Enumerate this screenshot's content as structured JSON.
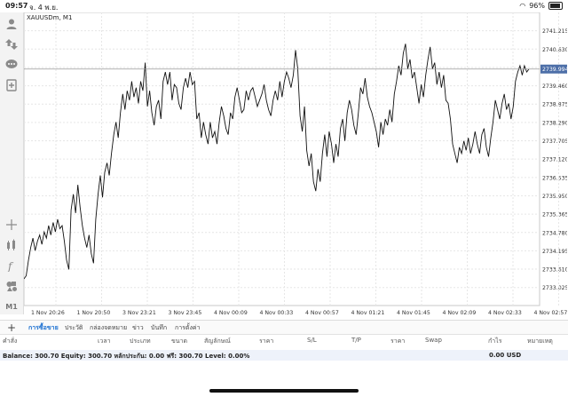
{
  "status_bar": {
    "time": "09:57",
    "date": "จ. 4 พ.ย.",
    "battery": "96%"
  },
  "chart": {
    "symbol": "XAUUSDm, M1",
    "current_price": "2739.994",
    "current_price_value": 2739.994
  },
  "chart_data": {
    "type": "line",
    "title": "XAUUSDm, M1",
    "ylim": [
      2732.45,
      2741.8
    ],
    "ytick_values": [
      2741.215,
      2740.63,
      2740.045,
      2739.46,
      2738.875,
      2738.29,
      2737.705,
      2737.12,
      2736.535,
      2735.95,
      2735.365,
      2734.78,
      2734.195,
      2733.61,
      2733.025
    ],
    "ytick_labels": [
      "2741.215",
      "2740.630",
      "2740.045",
      "2739.460",
      "2738.875",
      "2738.290",
      "2737.705",
      "2737.120",
      "2736.535",
      "2735.950",
      "2735.365",
      "2734.780",
      "2734.195",
      "2733.610",
      "2733.025"
    ],
    "xtick_labels": [
      "1 Nov 20:26",
      "1 Nov 20:50",
      "3 Nov 23:21",
      "3 Nov 23:45",
      "4 Nov 00:09",
      "4 Nov 00:33",
      "4 Nov 00:57",
      "4 Nov 01:21",
      "4 Nov 01:45",
      "4 Nov 02:09",
      "4 Nov 02:33",
      "4 Nov 02:57"
    ],
    "values": [
      2733.3,
      2733.4,
      2733.9,
      2734.3,
      2734.6,
      2734.2,
      2734.5,
      2734.7,
      2734.4,
      2734.8,
      2734.6,
      2735.0,
      2734.7,
      2735.1,
      2734.8,
      2735.2,
      2734.9,
      2735.0,
      2734.5,
      2733.9,
      2733.6,
      2735.5,
      2736.0,
      2735.4,
      2736.3,
      2735.6,
      2735.0,
      2734.6,
      2734.3,
      2734.7,
      2734.1,
      2733.8,
      2735.2,
      2736.0,
      2736.6,
      2735.9,
      2736.7,
      2737.0,
      2736.6,
      2737.3,
      2737.9,
      2738.3,
      2737.8,
      2738.6,
      2739.2,
      2738.7,
      2739.3,
      2739.0,
      2739.6,
      2739.1,
      2739.4,
      2738.9,
      2739.6,
      2739.3,
      2740.2,
      2738.8,
      2739.3,
      2738.6,
      2738.2,
      2738.8,
      2739.0,
      2738.4,
      2739.6,
      2739.9,
      2739.5,
      2739.9,
      2739.0,
      2739.5,
      2739.4,
      2738.9,
      2738.7,
      2739.4,
      2739.7,
      2739.4,
      2739.9,
      2739.5,
      2739.6,
      2738.4,
      2738.6,
      2737.8,
      2738.3,
      2737.9,
      2737.6,
      2738.3,
      2737.8,
      2738.0,
      2737.6,
      2738.3,
      2738.8,
      2738.5,
      2738.1,
      2737.9,
      2738.6,
      2738.4,
      2739.1,
      2739.4,
      2739.0,
      2738.6,
      2738.7,
      2739.3,
      2739.0,
      2739.3,
      2739.4,
      2739.1,
      2738.8,
      2739.0,
      2739.2,
      2739.5,
      2739.0,
      2738.7,
      2738.5,
      2739.0,
      2739.3,
      2739.0,
      2739.6,
      2739.1,
      2739.6,
      2739.9,
      2739.7,
      2739.4,
      2739.8,
      2740.6,
      2740.0,
      2738.5,
      2738.0,
      2738.8,
      2737.4,
      2736.9,
      2737.3,
      2736.4,
      2736.1,
      2736.8,
      2736.4,
      2737.3,
      2737.9,
      2737.2,
      2738.0,
      2737.6,
      2737.0,
      2737.6,
      2737.2,
      2738.1,
      2738.4,
      2737.7,
      2738.6,
      2739.0,
      2738.7,
      2738.2,
      2737.9,
      2738.6,
      2739.4,
      2739.2,
      2739.7,
      2739.1,
      2738.8,
      2738.6,
      2738.3,
      2738.0,
      2737.5,
      2738.3,
      2737.9,
      2738.4,
      2738.2,
      2738.7,
      2738.3,
      2739.2,
      2739.6,
      2740.1,
      2739.8,
      2740.5,
      2740.8,
      2740.0,
      2740.3,
      2739.7,
      2739.9,
      2739.4,
      2738.9,
      2739.5,
      2739.1,
      2739.8,
      2740.3,
      2740.7,
      2740.0,
      2740.2,
      2739.5,
      2739.9,
      2739.4,
      2739.8,
      2739.0,
      2738.9,
      2738.4,
      2737.6,
      2737.3,
      2737.0,
      2737.5,
      2737.3,
      2737.7,
      2737.4,
      2737.8,
      2737.3,
      2737.6,
      2738.0,
      2737.6,
      2737.3,
      2737.9,
      2738.1,
      2737.5,
      2737.2,
      2737.8,
      2738.3,
      2739.0,
      2738.7,
      2738.4,
      2738.9,
      2739.2,
      2738.7,
      2738.9,
      2738.4,
      2738.8,
      2739.6,
      2739.9,
      2740.1,
      2739.8,
      2740.1,
      2739.9,
      2739.994
    ]
  },
  "sidebar": {
    "icons": [
      "account-icon",
      "trade-icon",
      "chat-icon",
      "new-order-icon",
      "crosshair-icon",
      "indicators-icon",
      "function-icon",
      "objects-icon"
    ],
    "timeframe": "M1"
  },
  "tabs": [
    {
      "label": "การซื้อขาย",
      "active": true
    },
    {
      "label": "ประวัติ",
      "active": false
    },
    {
      "label": "กล่องจดหมาย",
      "active": false
    },
    {
      "label": "ข่าว",
      "active": false
    },
    {
      "label": "บันทึก",
      "active": false
    },
    {
      "label": "การตั้งค่า",
      "active": false
    }
  ],
  "columns": [
    "คำสั่ง",
    "เวลา",
    "ประเภท",
    "ขนาด",
    "สัญลักษณ์",
    "ราคา",
    "S/L",
    "T/P",
    "ราคา",
    "Swap",
    "กำไร",
    "หมายเหตุ"
  ],
  "account": {
    "summary": "Balance: 300.70 Equity: 300.70 หลักประกัน: 0.00 ฟรี: 300.70 Level: 0.00%",
    "profit": "0.00  USD"
  }
}
